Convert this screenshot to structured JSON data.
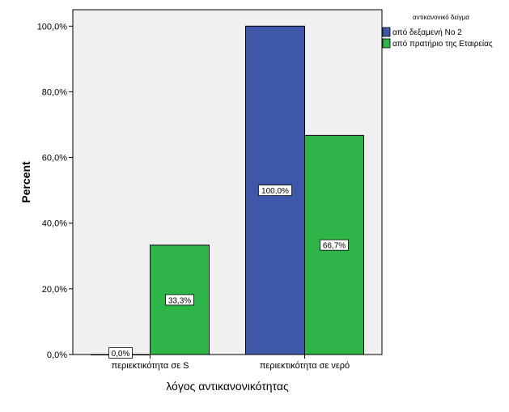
{
  "chart_data": {
    "type": "bar",
    "title": "",
    "xlabel": "λόγος αντικανονικότητας",
    "ylabel": "Percent",
    "ylim": [
      0,
      105
    ],
    "yticks": [
      0,
      20,
      40,
      60,
      80,
      100
    ],
    "ytick_labels": [
      "0,0%",
      "20,0%",
      "40,0%",
      "60,0%",
      "80,0%",
      "100,0%"
    ],
    "grid": false,
    "legend_position": "top-right",
    "legend_title": "αντικανονικό δείγμα",
    "categories": [
      "περιεκτικότητα σε S",
      "περιεκτικότητα σε νερό"
    ],
    "series": [
      {
        "name": "από δεξαμενή Νο 2",
        "color": "#3f57a8",
        "values": [
          0,
          100
        ],
        "labels": [
          "0,0%",
          "100,0%"
        ]
      },
      {
        "name": "από πρατήριο της Εταιρείας",
        "color": "#2eb548",
        "values": [
          33.3,
          66.7
        ],
        "labels": [
          "33,3%",
          "66,7%"
        ]
      }
    ],
    "plot_background": "#f0f0f0"
  }
}
